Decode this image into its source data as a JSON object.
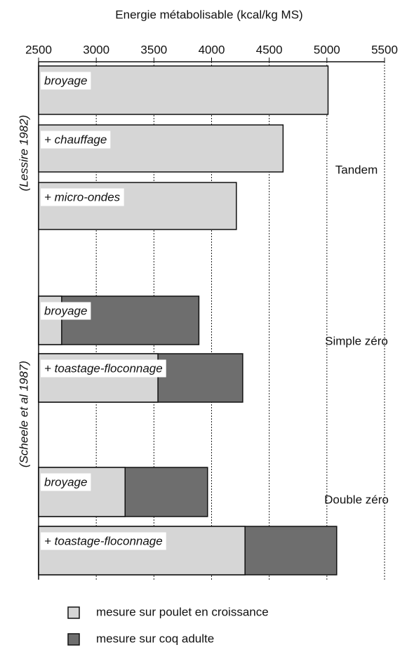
{
  "chart_data": {
    "type": "bar",
    "orientation": "horizontal",
    "title": "Energie métabolisable (kcal/kg MS)",
    "categories": [
      "broyage",
      "+ chauffage",
      "+ micro-ondes",
      "broyage",
      "+ toastage-floconnage",
      "broyage",
      "+ toastage-floconnage"
    ],
    "series": [
      {
        "name": "mesure sur poulet en croissance",
        "color": "#d6d6d6",
        "values": [
          5010,
          4620,
          4215,
          2700,
          3535,
          3250,
          4290
        ]
      },
      {
        "name": "mesure sur coq adulte",
        "color": "#6e6e6e",
        "values": [
          null,
          null,
          null,
          3890,
          4270,
          3965,
          5085
        ]
      }
    ],
    "variety_labels": [
      "Tandem",
      "Simple zéro",
      "Double zéro"
    ],
    "study_labels": [
      "(Lessire 1982)",
      "(Scheele et al 1987)"
    ],
    "xlim": [
      2500,
      5500
    ],
    "xticks": [
      2500,
      3000,
      3500,
      4000,
      4500,
      5000,
      5500
    ],
    "grid": true
  }
}
